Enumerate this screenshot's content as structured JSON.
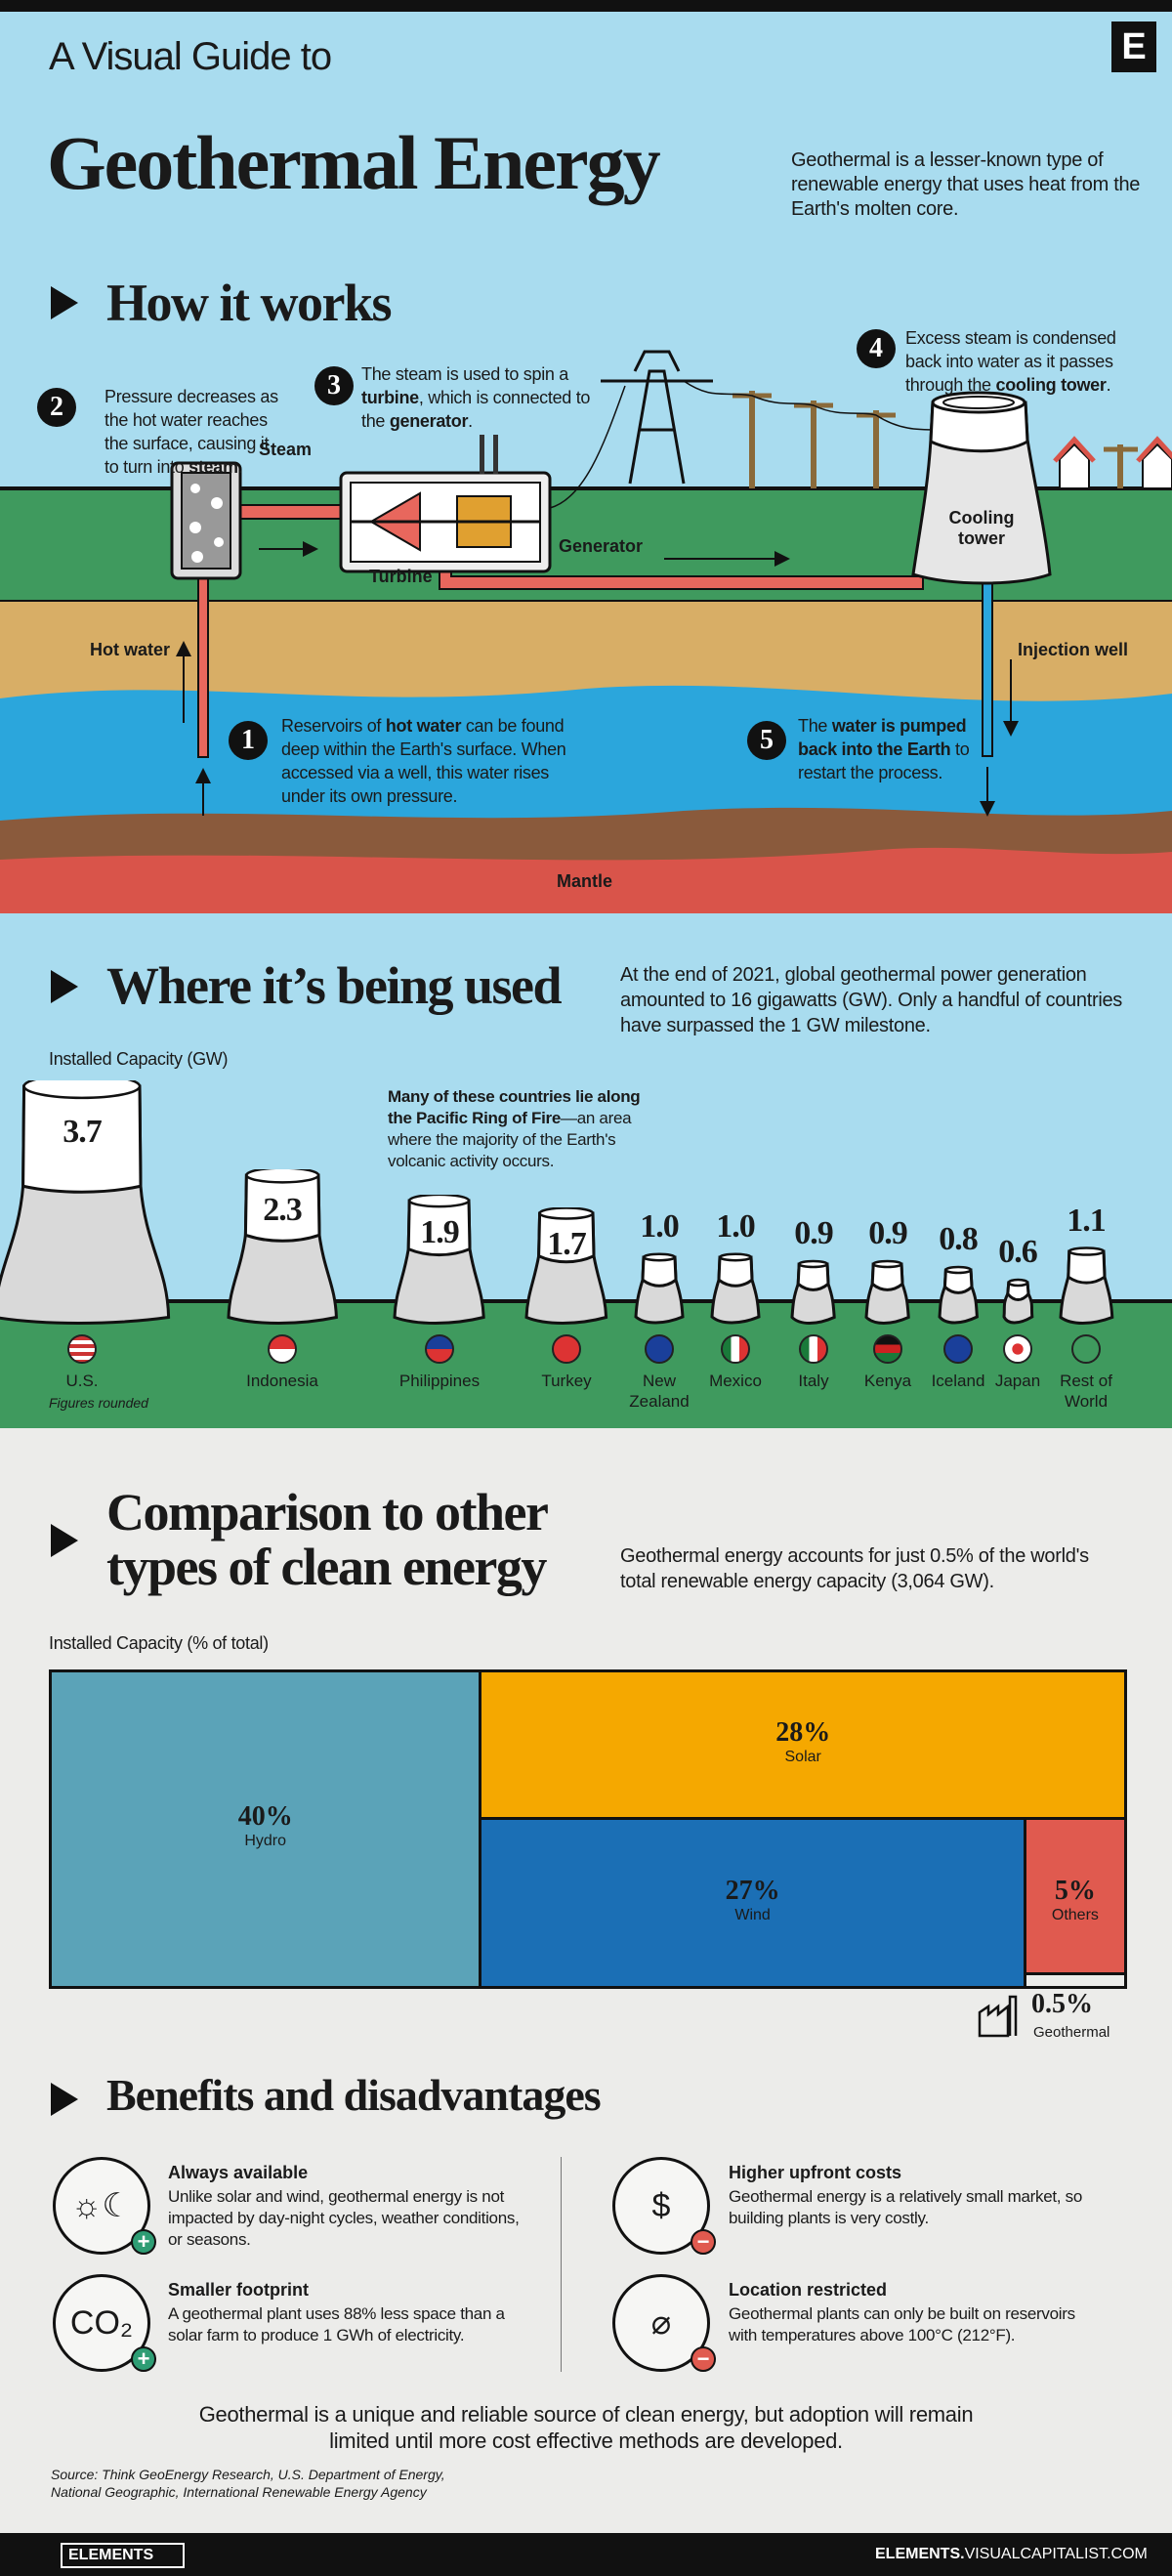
{
  "header": {
    "kicker": "A Visual Guide to",
    "title": "Geothermal Energy",
    "intro": "Geothermal is a lesser-known type of renewable energy that uses heat from the Earth's molten core.",
    "logo": "E"
  },
  "how": {
    "title": "How it works",
    "steps": [
      {
        "n": "1",
        "text_pre": "Reservoirs of ",
        "bold": "hot water",
        "text_post": " can be found deep within the Earth's surface. When accessed via a well, this water rises under its own pressure."
      },
      {
        "n": "2",
        "text_pre": "Pressure decreases as the hot water reaches the surface, causing it to turn into ",
        "bold": "steam",
        "text_post": "."
      },
      {
        "n": "3",
        "text_pre": "The steam is used to spin a ",
        "bold": "turbine",
        "text_mid": ", which is connected to the ",
        "bold2": "generator",
        "text_post": "."
      },
      {
        "n": "4",
        "text_pre": "Excess steam is condensed back into water as it passes through the ",
        "bold": "cooling tower",
        "text_post": "."
      },
      {
        "n": "5",
        "text_pre": "The ",
        "bold": "water is pumped back into the Earth",
        "text_post": " to restart the process."
      }
    ],
    "labels": {
      "steam": "Steam",
      "turbine": "Turbine",
      "generator": "Generator",
      "cooling_tower": "Cooling tower",
      "hot_water": "Hot water",
      "injection_well": "Injection well",
      "mantle": "Mantle"
    }
  },
  "where": {
    "title": "Where it’s being used",
    "intro": "At the end of 2021, global geothermal power generation amounted to 16 gigawatts (GW). Only a handful of countries have surpassed the 1 GW milestone.",
    "note_bold": "Many of these countries lie along the Pacific Ring of Fire",
    "note_rest": "—an area where the majority of the Earth's volcanic activity occurs.",
    "footnote": "Figures rounded"
  },
  "compare": {
    "title_l1": "Comparison to other",
    "title_l2": "types of clean energy",
    "intro": "Geothermal energy accounts for just 0.5% of the world's total renewable energy capacity (3,064 GW)."
  },
  "benefits": {
    "title": "Benefits and disadvantages",
    "items": [
      {
        "title": "Always available",
        "text": "Unlike solar and wind, geothermal energy is not impacted by day-night cycles, weather conditions, or seasons.",
        "type": "plus",
        "icon": "day-night-cycle-icon"
      },
      {
        "title": "Smaller footprint",
        "text": "A geothermal plant uses 88% less space than a solar farm to produce 1 GWh of electricity.",
        "type": "plus",
        "icon": "co2-footprint-icon"
      },
      {
        "title": "Higher upfront costs",
        "text": "Geothermal energy is a relatively small market, so building plants is very costly.",
        "type": "minus",
        "icon": "money-bag-icon"
      },
      {
        "title": "Location restricted",
        "text": "Geothermal plants can only be built on reservoirs with temperatures above 100°C (212°F).",
        "type": "minus",
        "icon": "location-restricted-icon"
      }
    ],
    "plus": "+",
    "minus": "−",
    "conclusion": "Geothermal is a unique and reliable source of clean energy, but adoption will remain limited until more cost effective methods are developed.",
    "source_l1": "Source: Think GeoEnergy Research, U.S. Department of Energy,",
    "source_l2": "National Geographic, International Renewable Energy Agency"
  },
  "footer": {
    "brand": "ELEMENTS",
    "url_bold": "ELEMENTS.",
    "url_rest": "VISUALCAPITALIST.COM"
  },
  "colors": {
    "sky": "#a9dcef",
    "grass": "#3f9a5e",
    "sand": "#d8ae66",
    "water": "#2ba6dc",
    "mantle": "#d9544a",
    "hydro": "#5ba3b8",
    "solar": "#f5a800",
    "wind": "#1b6fb5",
    "others": "#e05a4f",
    "plus": "#2e9d74",
    "minus": "#e05a4f"
  },
  "chart_data": [
    {
      "type": "bar",
      "title": "",
      "ylabel": "Installed Capacity (GW)",
      "categories": [
        "U.S.",
        "Indonesia",
        "Philippines",
        "Turkey",
        "New Zealand",
        "Mexico",
        "Italy",
        "Kenya",
        "Iceland",
        "Japan",
        "Rest of World"
      ],
      "values": [
        3.7,
        2.3,
        1.9,
        1.7,
        1.0,
        1.0,
        0.9,
        0.9,
        0.8,
        0.6,
        1.1
      ],
      "labels": [
        "3.7",
        "2.3",
        "1.9",
        "1.7",
        "1.0",
        "1.0",
        "0.9",
        "0.9",
        "0.8",
        "0.6",
        "1.1"
      ],
      "flags": [
        "us",
        "id",
        "ph",
        "tr",
        "nz",
        "mx",
        "it",
        "ke",
        "is",
        "jp",
        "world"
      ]
    },
    {
      "type": "treemap",
      "ylabel": "Installed Capacity (% of total)",
      "categories": [
        "Hydro",
        "Solar",
        "Wind",
        "Others",
        "Geothermal"
      ],
      "values": [
        40,
        28,
        27,
        5,
        0.5
      ],
      "labels": [
        "40%",
        "28%",
        "27%",
        "5%",
        "0.5%"
      ]
    }
  ]
}
